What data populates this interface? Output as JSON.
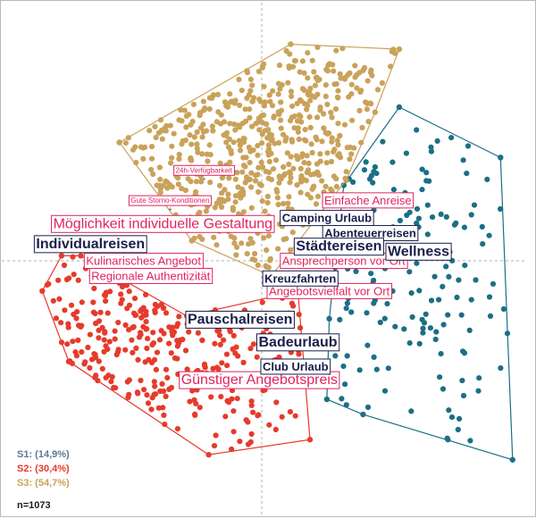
{
  "chart_data": {
    "type": "scatter",
    "title": "",
    "xlabel": "",
    "ylabel": "",
    "xlim": [
      -1.0,
      1.0
    ],
    "ylim": [
      -1.0,
      1.0
    ],
    "grid": false,
    "axis_lines": "dashed-cross-at-origin",
    "legend_placement": "bottom-left",
    "series": [
      {
        "name": "S1",
        "share": "(14,9%)",
        "color": "#1b6f86",
        "n_points": 160,
        "hull": [
          [
            0.57,
            0.61
          ],
          [
            0.99,
            0.41
          ],
          [
            1.04,
            -0.79
          ],
          [
            0.42,
            -0.61
          ],
          [
            0.27,
            -0.55
          ],
          [
            0.28,
            -0.23
          ],
          [
            0.34,
            0.3
          ]
        ]
      },
      {
        "name": "S2",
        "share": "(30,4%)",
        "color": "#e53b2c",
        "n_points": 326,
        "hull": [
          [
            -0.75,
            0.02
          ],
          [
            -0.31,
            -0.22
          ],
          [
            0.15,
            -0.12
          ],
          [
            0.2,
            -0.71
          ],
          [
            -0.22,
            -0.77
          ],
          [
            -0.8,
            -0.4
          ],
          [
            -0.91,
            -0.12
          ],
          [
            -0.83,
            0.02
          ]
        ]
      },
      {
        "name": "S3",
        "share": "(54,7%)",
        "color": "#c9a25a",
        "n_points": 587,
        "hull": [
          [
            -0.59,
            0.47
          ],
          [
            0.12,
            0.86
          ],
          [
            0.57,
            0.84
          ],
          [
            0.47,
            0.59
          ],
          [
            0.35,
            0.32
          ],
          [
            0.04,
            -0.06
          ],
          [
            -0.29,
            0.08
          ],
          [
            -0.59,
            0.47
          ]
        ]
      }
    ],
    "attribute_labels": [
      {
        "key": "verfuegbarkeit",
        "text": "24h-Verfügbarkeit",
        "x": -0.24,
        "y": 0.36,
        "size": "small"
      },
      {
        "key": "storno",
        "text": "Gute Storno-Konditionen",
        "x": -0.38,
        "y": 0.24,
        "size": "small"
      },
      {
        "key": "anreise",
        "text": "Einfache Anreise",
        "x": 0.44,
        "y": 0.24,
        "size": "medium"
      },
      {
        "key": "gestaltung",
        "text": "Möglichkeit individuelle Gestaltung",
        "x": -0.41,
        "y": 0.15,
        "size": "large"
      },
      {
        "key": "kulinarisch",
        "text": "Kulinarisches Angebot",
        "x": -0.49,
        "y": 0.0,
        "size": "medium"
      },
      {
        "key": "authentizitaet",
        "text": "Regionale Authentizität",
        "x": -0.46,
        "y": -0.06,
        "size": "medium"
      },
      {
        "key": "ansprechperson",
        "text": "Ansprechperson vor Ort",
        "x": 0.34,
        "y": 0.0,
        "size": "medium"
      },
      {
        "key": "angebotsvielfalt",
        "text": "Angebotsvielfalt vor Ort",
        "x": 0.28,
        "y": -0.12,
        "size": "medium"
      },
      {
        "key": "angebotspreis",
        "text": "Günstiger Angebotspreis",
        "x": -0.01,
        "y": -0.47,
        "size": "large"
      }
    ],
    "segment_labels": [
      {
        "key": "camping",
        "text": "Camping Urlaub",
        "x": 0.27,
        "y": 0.17,
        "size": "medium"
      },
      {
        "key": "abenteuer",
        "text": "Abenteuerreisen",
        "x": 0.45,
        "y": 0.11,
        "size": "medium"
      },
      {
        "key": "individual",
        "text": "Individualreisen",
        "x": -0.71,
        "y": 0.07,
        "size": "large"
      },
      {
        "key": "staedte",
        "text": "Städtereisen",
        "x": 0.32,
        "y": 0.06,
        "size": "large"
      },
      {
        "key": "wellness",
        "text": "Wellness",
        "x": 0.65,
        "y": 0.04,
        "size": "large"
      },
      {
        "key": "kreuzfahrten",
        "text": "Kreuzfahrten",
        "x": 0.16,
        "y": -0.07,
        "size": "medium"
      },
      {
        "key": "pauschal",
        "text": "Pauschalreisen",
        "x": -0.09,
        "y": -0.23,
        "size": "large"
      },
      {
        "key": "badeurlaub",
        "text": "Badeurlaub",
        "x": 0.15,
        "y": -0.32,
        "size": "large"
      },
      {
        "key": "club",
        "text": "Club Urlaub",
        "x": 0.14,
        "y": -0.42,
        "size": "medium"
      }
    ]
  },
  "legend": {
    "s1": "S1: (14,9%)",
    "s2": "S2: (30,4%)",
    "s3": "S3: (54,7%)"
  },
  "sample_size": "n=1073",
  "colors": {
    "s1": "#1b6f86",
    "s2": "#e53b2c",
    "s3": "#c9a25a",
    "attribute": "#e0245e",
    "segment": "#1a1f4b",
    "axis": "#b0b0b0"
  }
}
